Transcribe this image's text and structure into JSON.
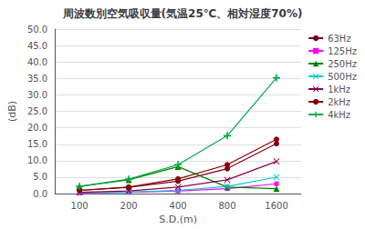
{
  "chart_data": {
    "type": "line",
    "title": "周波数別空気吸収量(気温25℃、相対湿度70%)",
    "xlabel": "S.D.(m)",
    "ylabel": "(dB)",
    "categories": [
      "100",
      "200",
      "400",
      "800",
      "1600"
    ],
    "series": [
      {
        "name": "63Hz",
        "color": "#7B0020",
        "marker": "circle",
        "values": [
          1.0,
          1.9,
          3.8,
          7.6,
          15.2
        ]
      },
      {
        "name": "125Hz",
        "color": "#FF00FF",
        "marker": "square",
        "values": [
          0.2,
          0.4,
          0.8,
          1.5,
          3.0
        ]
      },
      {
        "name": "250Hz",
        "color": "#008000",
        "marker": "triangle",
        "values": [
          2.2,
          4.2,
          8.2,
          2.0,
          1.5
        ]
      },
      {
        "name": "500Hz",
        "color": "#00CCCC",
        "marker": "x",
        "values": [
          0.3,
          0.5,
          1.0,
          2.2,
          5.0
        ]
      },
      {
        "name": "1kHz",
        "color": "#8B004B",
        "marker": "x",
        "values": [
          0.4,
          0.8,
          2.0,
          4.2,
          9.8
        ]
      },
      {
        "name": "2kHz",
        "color": "#8B0000",
        "marker": "circle",
        "values": [
          1.0,
          2.0,
          4.5,
          8.8,
          16.5
        ]
      },
      {
        "name": "4kHz",
        "color": "#00AA44",
        "marker": "plus",
        "values": [
          2.2,
          4.4,
          8.8,
          17.6,
          35.2
        ]
      }
    ],
    "ylim": [
      0,
      50
    ],
    "yticks": [
      {
        "value": 0,
        "label": "0.0"
      },
      {
        "value": 5,
        "label": "5.0"
      },
      {
        "value": 10,
        "label": "10.0"
      },
      {
        "value": 15,
        "label": "15.0"
      },
      {
        "value": 20,
        "label": "20.0"
      },
      {
        "value": 25,
        "label": "25.0"
      },
      {
        "value": 30,
        "label": "30.0"
      },
      {
        "value": 35,
        "label": "35.0"
      },
      {
        "value": 40,
        "label": "40.0"
      },
      {
        "value": 45,
        "label": "45.0"
      },
      {
        "value": 50,
        "label": "50.0"
      }
    ],
    "grid": true,
    "legend": "right"
  }
}
